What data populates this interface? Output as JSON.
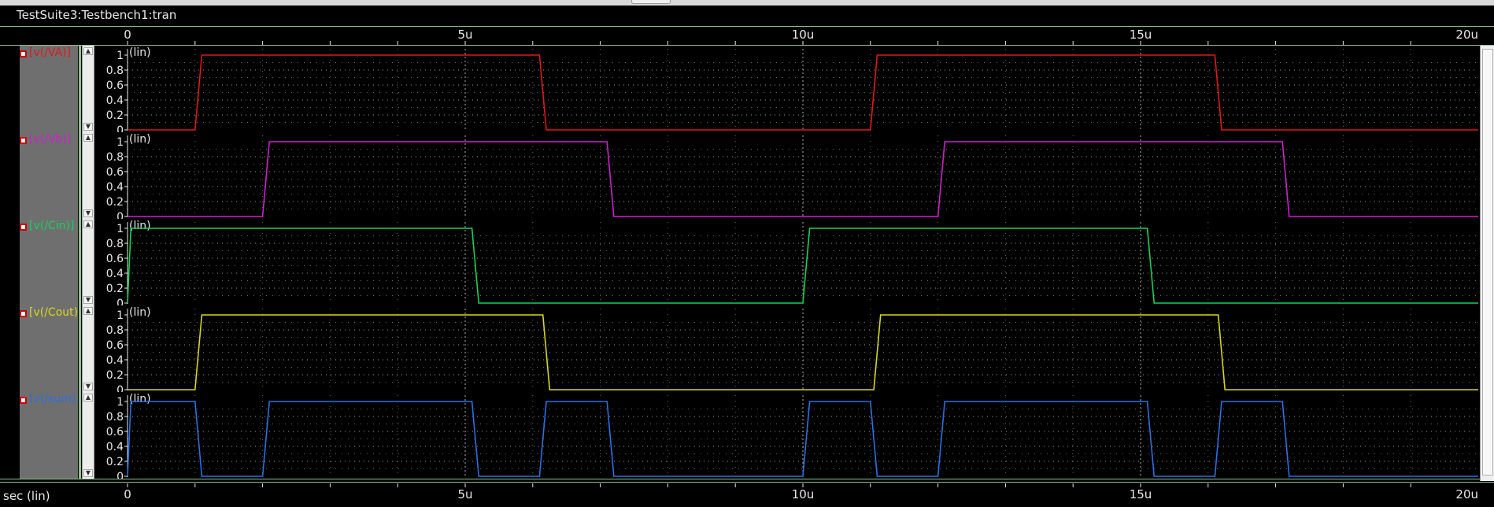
{
  "window": {
    "title": "TestSuite3:Testbench1:tran"
  },
  "x_axis": {
    "ticks": [
      "0",
      "5u",
      "10u",
      "15u",
      "20u"
    ],
    "label": "sec (lin)"
  },
  "chart_data": {
    "type": "line",
    "x_unit": "s",
    "xlim": [
      0,
      2e-05
    ],
    "ylim": [
      0,
      1
    ],
    "y_ticks": [
      "1",
      "0.8",
      "0.6",
      "0.4",
      "0.2",
      "0"
    ],
    "y_scale_label": "(lin)",
    "grid": true,
    "series": [
      {
        "name": "[v(/VA)]",
        "color": "#e01818",
        "x": [
          0,
          1e-06,
          1.1e-06,
          6.1e-06,
          6.2e-06,
          1.1e-05,
          1.11e-05,
          1.61e-05,
          1.62e-05,
          2e-05
        ],
        "y": [
          0,
          0,
          1,
          1,
          0,
          0,
          1,
          1,
          0,
          0
        ]
      },
      {
        "name": "[v(/Vb)]",
        "color": "#cc22cc",
        "x": [
          0,
          2e-06,
          2.1e-06,
          7.1e-06,
          7.2e-06,
          1.2e-05,
          1.21e-05,
          1.71e-05,
          1.72e-05,
          2e-05
        ],
        "y": [
          0,
          0,
          1,
          1,
          0,
          0,
          1,
          1,
          0,
          0
        ]
      },
      {
        "name": "[v(/Cin)]",
        "color": "#18d05a",
        "x": [
          0,
          5e-08,
          5.1e-06,
          5.2e-06,
          1e-05,
          1.01e-05,
          1.51e-05,
          1.52e-05,
          2e-05
        ],
        "y": [
          0,
          1,
          1,
          0,
          0,
          1,
          1,
          0,
          0
        ]
      },
      {
        "name": "[v(/Cout)]",
        "color": "#d8d818",
        "x": [
          0,
          1e-06,
          1.1e-06,
          6.15e-06,
          6.25e-06,
          1.105e-05,
          1.115e-05,
          1.615e-05,
          1.625e-05,
          2e-05
        ],
        "y": [
          0,
          0,
          1,
          1,
          0,
          0,
          1,
          1,
          0,
          0
        ]
      },
      {
        "name": "[v(/sum)]",
        "color": "#2a70e0",
        "x": [
          0,
          5e-08,
          1e-06,
          1.1e-06,
          2e-06,
          2.1e-06,
          5.1e-06,
          5.2e-06,
          6.1e-06,
          6.2e-06,
          7.1e-06,
          7.2e-06,
          1e-05,
          1.01e-05,
          1.1e-05,
          1.11e-05,
          1.2e-05,
          1.21e-05,
          1.51e-05,
          1.52e-05,
          1.61e-05,
          1.62e-05,
          1.71e-05,
          1.72e-05,
          2e-05
        ],
        "y": [
          0,
          1,
          1,
          0,
          0,
          1,
          1,
          0,
          0,
          1,
          1,
          0,
          0,
          1,
          1,
          0,
          0,
          1,
          1,
          0,
          0,
          1,
          1,
          0,
          0
        ]
      }
    ]
  }
}
